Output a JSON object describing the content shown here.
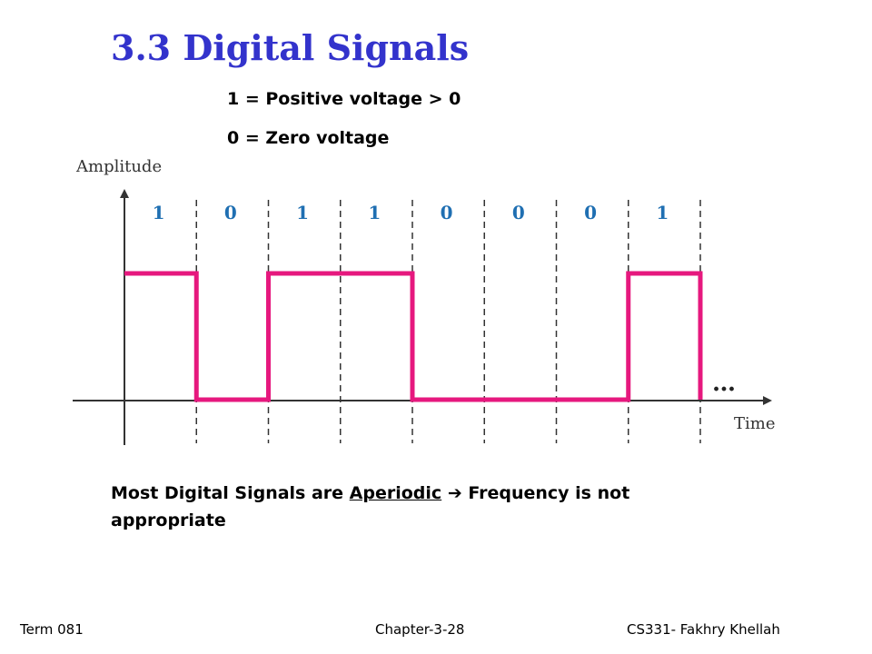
{
  "slide": {
    "title": "3.3 Digital Signals",
    "legend": {
      "one": "1 = Positive voltage > 0",
      "zero": "0 = Zero voltage"
    },
    "note": {
      "part1": "Most Digital Signals are ",
      "underlined": "Aperiodic",
      "arrow": "➔",
      "part2": " Frequency is not appropriate"
    },
    "footer": {
      "left": "Term 081",
      "center": "Chapter-3-28",
      "right": "CS331- Fakhry Khellah"
    }
  },
  "diagram": {
    "y_axis_label": "Amplitude",
    "x_axis_label": "Time",
    "continuation": "…",
    "bits": [
      "1",
      "0",
      "1",
      "1",
      "0",
      "0",
      "0",
      "1"
    ],
    "signal_color": "#e6187e",
    "bit_label_color": "#1f6fb2",
    "title_color": "#3333cc"
  }
}
